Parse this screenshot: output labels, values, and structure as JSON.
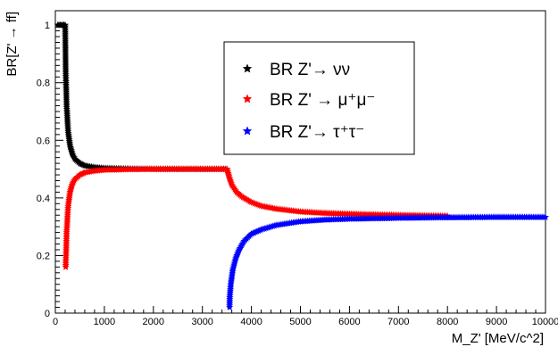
{
  "chart_data": {
    "type": "scatter",
    "title": "",
    "xlabel": "M_Z' [MeV/c^2]",
    "ylabel": "BR[Z' → ff]",
    "xlim": [
      0,
      10000
    ],
    "ylim": [
      0,
      1.05
    ],
    "x_ticks": [
      0,
      1000,
      2000,
      3000,
      4000,
      5000,
      6000,
      7000,
      8000,
      9000,
      10000
    ],
    "y_ticks": [
      0,
      0.2,
      0.4,
      0.6,
      0.8,
      1
    ],
    "marker": "star",
    "grid": false,
    "legend_position": "top-center",
    "series": [
      {
        "name": "BR Z'→ νν",
        "color": "#000000",
        "x": [
          50,
          100,
          150,
          200,
          211,
          230,
          260,
          300,
          350,
          400,
          500,
          600,
          800,
          1000,
          1500,
          2000,
          2500,
          3000,
          3400,
          3500
        ],
        "y": [
          1.0,
          1.0,
          1.0,
          1.0,
          0.84,
          0.72,
          0.63,
          0.58,
          0.55,
          0.535,
          0.52,
          0.512,
          0.506,
          0.503,
          0.501,
          0.5,
          0.5,
          0.5,
          0.5,
          0.5
        ]
      },
      {
        "name": "BR Z' → μ⁺μ⁻",
        "color": "#ff0000",
        "x": [
          211,
          230,
          260,
          300,
          350,
          400,
          500,
          600,
          800,
          1000,
          1500,
          2000,
          2500,
          3000,
          3400,
          3500,
          3550,
          3600,
          3700,
          3800,
          4000,
          4200,
          4500,
          5000,
          5500,
          6000,
          7000,
          8000
        ],
        "y": [
          0.16,
          0.28,
          0.37,
          0.42,
          0.45,
          0.465,
          0.48,
          0.488,
          0.494,
          0.497,
          0.499,
          0.5,
          0.5,
          0.5,
          0.5,
          0.5,
          0.47,
          0.445,
          0.42,
          0.405,
          0.385,
          0.372,
          0.362,
          0.352,
          0.347,
          0.344,
          0.34,
          0.337
        ]
      },
      {
        "name": "BR Z'→ τ⁺τ⁻",
        "color": "#0000ff",
        "x": [
          3553,
          3560,
          3580,
          3620,
          3680,
          3750,
          3850,
          4000,
          4200,
          4500,
          5000,
          5500,
          6000,
          7000,
          8000,
          9000,
          10000
        ],
        "y": [
          0.02,
          0.06,
          0.1,
          0.15,
          0.19,
          0.22,
          0.25,
          0.275,
          0.29,
          0.305,
          0.318,
          0.324,
          0.327,
          0.33,
          0.332,
          0.333,
          0.333
        ]
      }
    ]
  }
}
